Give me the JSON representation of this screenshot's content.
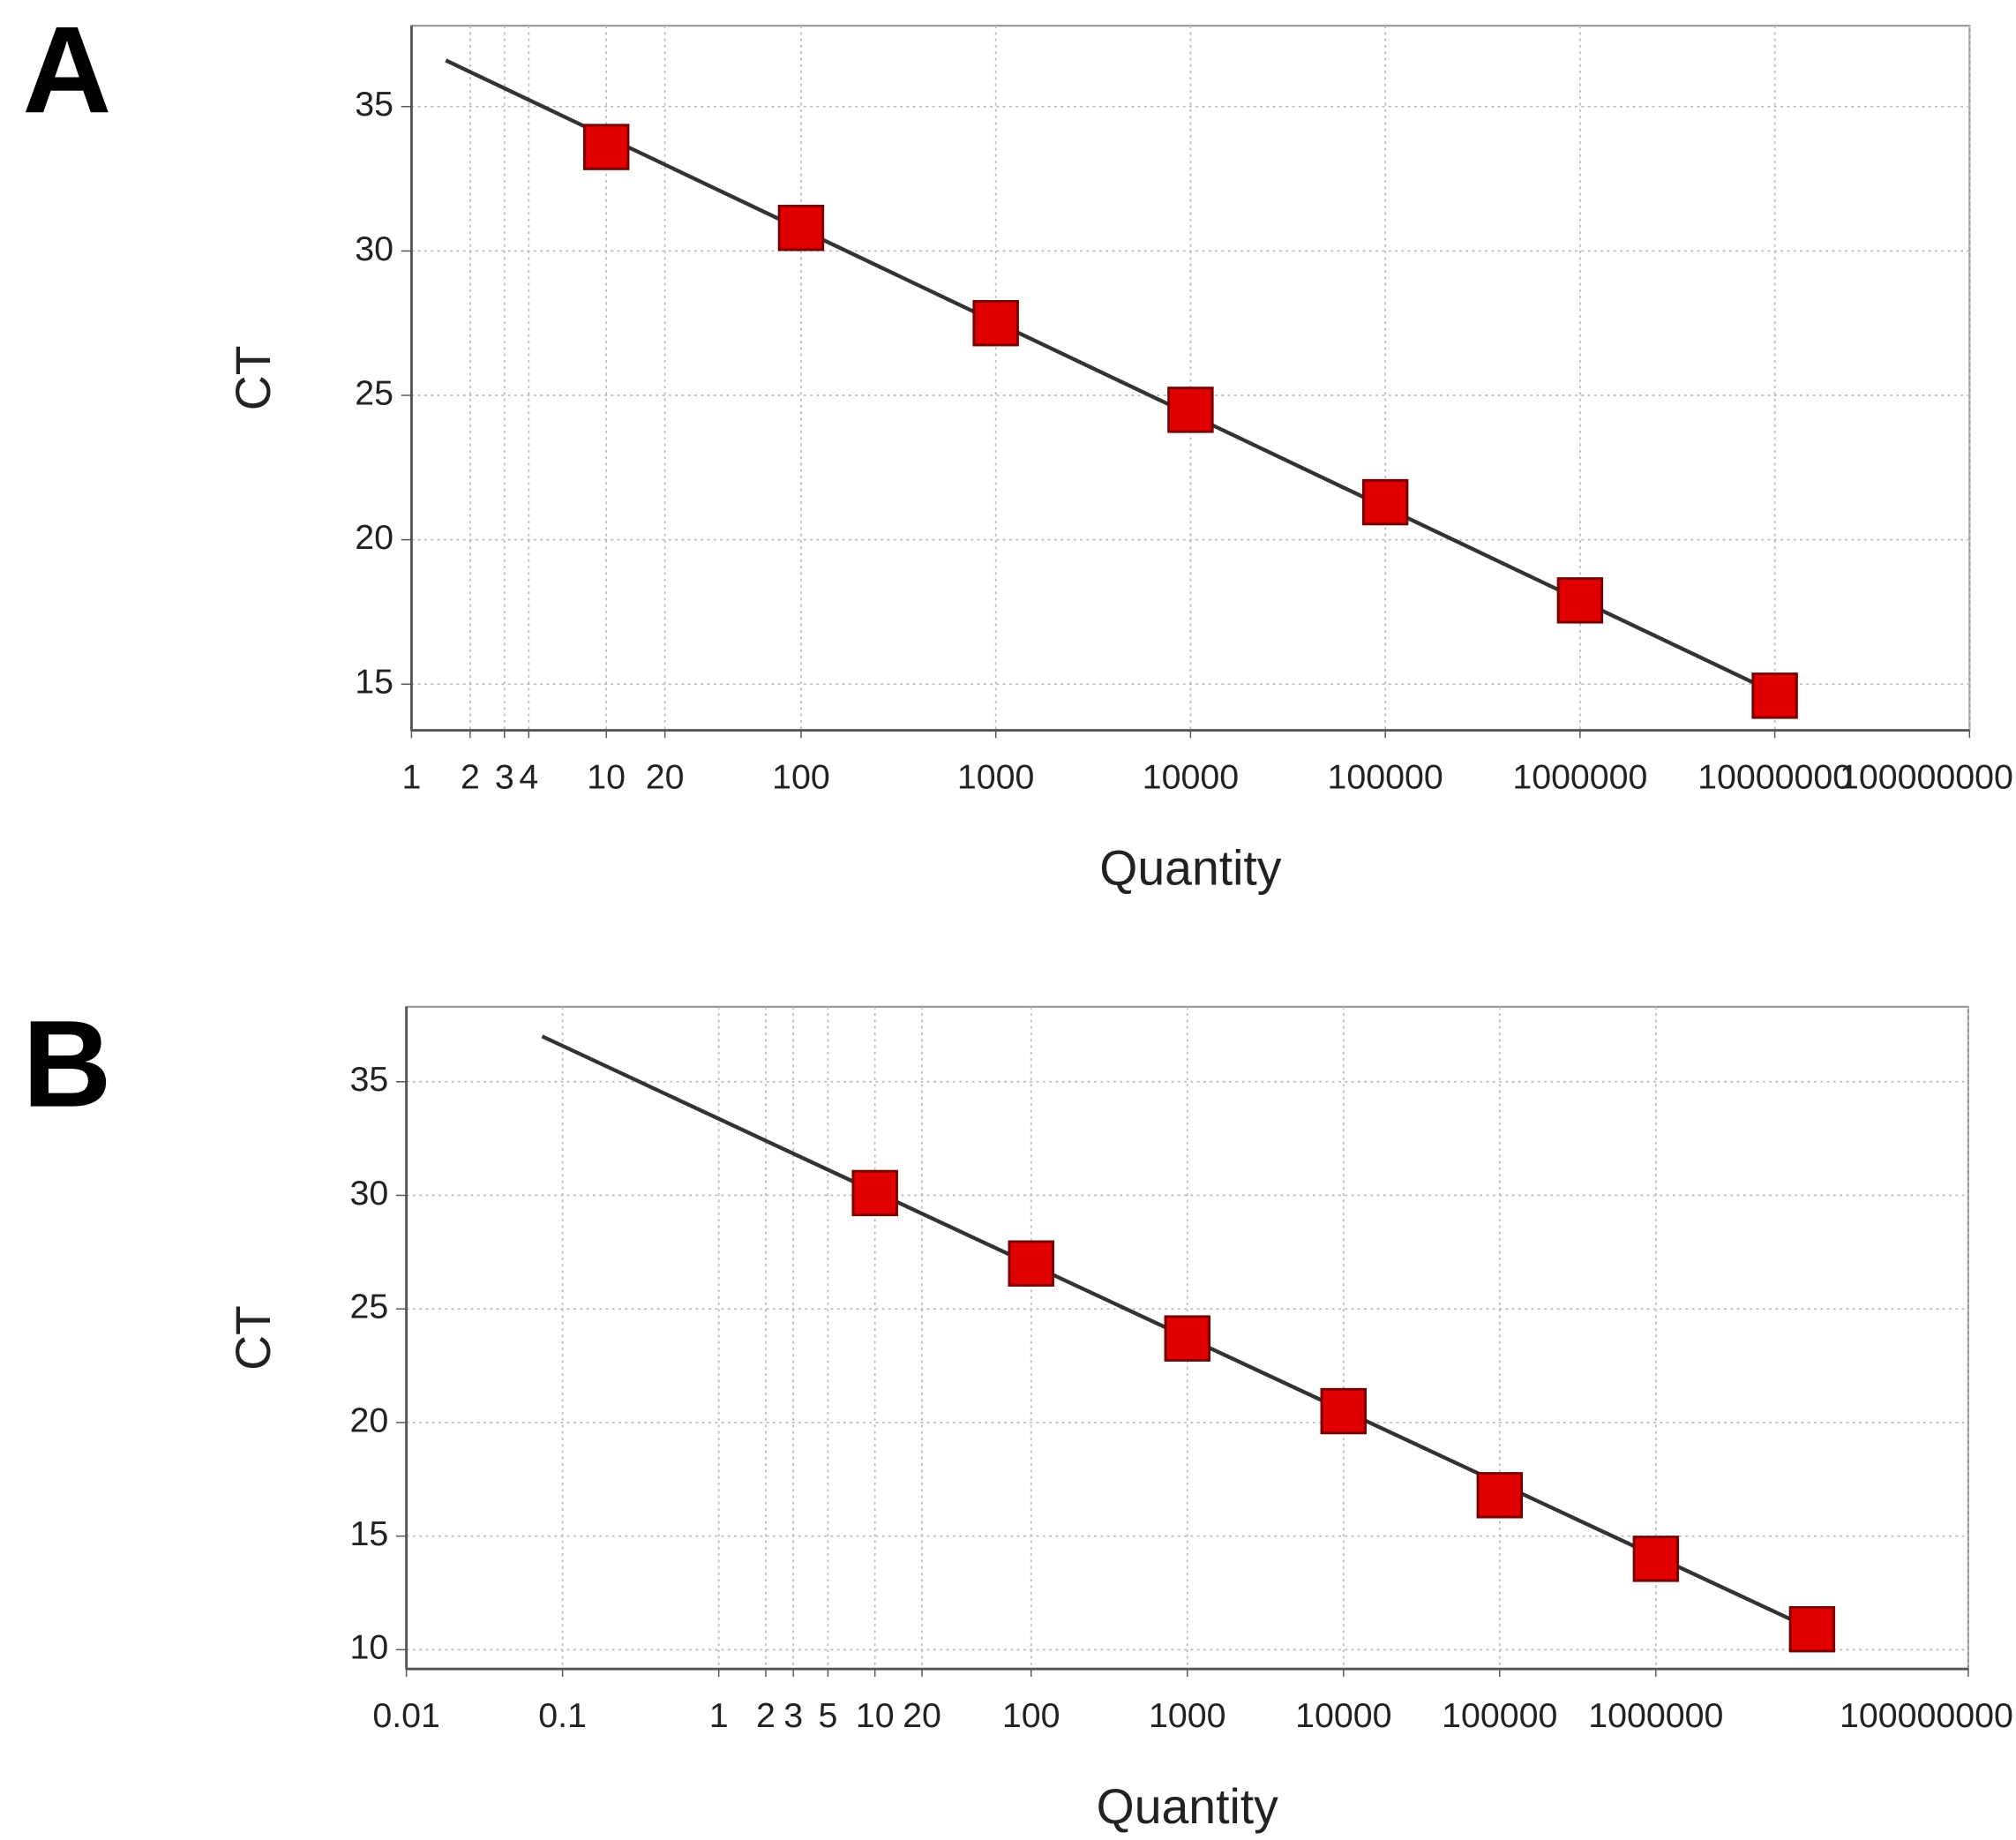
{
  "chart_data": [
    {
      "type": "scatter",
      "panel_label": "A",
      "x_label": "Quantity",
      "y_label": "CT",
      "log_x": true,
      "grid": true,
      "xlim": [
        1,
        100000000
      ],
      "ylim": [
        13.4,
        37.8
      ],
      "xticks": [
        1,
        2,
        3,
        4,
        10,
        20,
        100,
        1000,
        10000,
        100000,
        1000000,
        10000000,
        100000000
      ],
      "yticks": [
        15,
        20,
        25,
        30,
        35
      ],
      "series": [
        {
          "color": "#e00000",
          "x": [
            10,
            100,
            1000,
            10000,
            100000,
            1000000,
            10000000
          ],
          "values": [
            33.6,
            30.8,
            27.5,
            24.5,
            21.3,
            17.9,
            14.6
          ]
        }
      ],
      "fit_line": {
        "color": "#333333",
        "x": [
          1.5,
          10000000
        ],
        "values": [
          36.6,
          14.7
        ]
      }
    },
    {
      "type": "scatter",
      "panel_label": "B",
      "x_label": "Quantity",
      "y_label": "CT",
      "log_x": true,
      "grid": true,
      "xlim": [
        0.01,
        100000000
      ],
      "ylim": [
        9.15,
        38.3
      ],
      "xticks": [
        0.01,
        0.1,
        1,
        2,
        3,
        5,
        10,
        20,
        100,
        1000,
        10000,
        100000,
        1000000,
        100000000
      ],
      "yticks": [
        10,
        15,
        20,
        25,
        30,
        35
      ],
      "series": [
        {
          "color": "#e00000",
          "x": [
            10,
            100,
            1000,
            10000,
            100000,
            1000000,
            10000000
          ],
          "values": [
            30.1,
            27.0,
            23.7,
            20.5,
            16.8,
            14.0,
            10.9
          ]
        }
      ],
      "fit_line": {
        "color": "#333333",
        "x": [
          0.074,
          10000000
        ],
        "values": [
          37.0,
          10.9
        ]
      }
    }
  ]
}
